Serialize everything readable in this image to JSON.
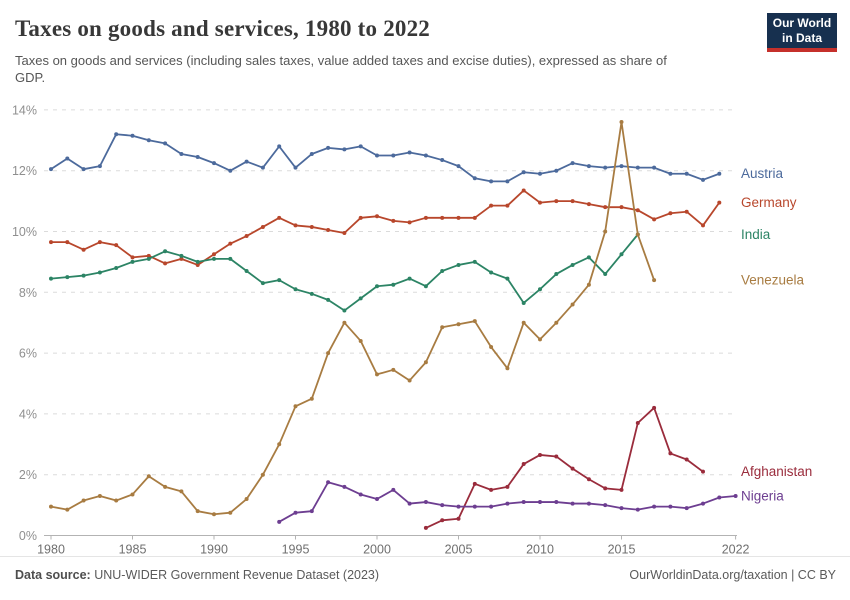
{
  "header": {
    "title": "Taxes on goods and services, 1980 to 2022",
    "subtitle_line1": "Taxes on goods and services (including sales taxes, value added taxes and excise duties), expressed as share of",
    "subtitle_line2": "GDP.",
    "logo_line1": "Our World",
    "logo_line2": "in Data",
    "logo_bg": "#17304F",
    "logo_strip": "#C5302B"
  },
  "footer": {
    "source_label": "Data source:",
    "source_text": "UNU-WIDER Government Revenue Dataset (2023)",
    "right_text": "OurWorldinData.org/taxation | CC BY"
  },
  "chart_data": {
    "type": "line",
    "title": "Taxes on goods and services, 1980 to 2022",
    "unit": "% of GDP",
    "xlim": [
      1980,
      2022
    ],
    "ylim": [
      0,
      14
    ],
    "grid": "horizontal-dashed",
    "legend_position": "right of line ends",
    "x_ticks": [
      1980,
      1985,
      1990,
      1995,
      2000,
      2005,
      2010,
      2015,
      2022
    ],
    "y_ticks": [
      0,
      2,
      4,
      6,
      8,
      10,
      12,
      14
    ],
    "y_tick_suffix": "%",
    "colors": {
      "grid": "#dbdbdb",
      "axis": "#b3b3b3",
      "y_tick_label": "#8f8f8f",
      "x_tick_label": "#6f6f6f"
    },
    "series": [
      {
        "name": "Austria",
        "color": "#4C6A9C",
        "start_year": 1980,
        "values": [
          12.05,
          12.4,
          12.05,
          12.15,
          13.2,
          13.15,
          13.0,
          12.9,
          12.55,
          12.45,
          12.25,
          12.0,
          12.3,
          12.1,
          12.8,
          12.1,
          12.55,
          12.75,
          12.7,
          12.8,
          12.5,
          12.5,
          12.6,
          12.5,
          12.35,
          12.15,
          11.75,
          11.65,
          11.65,
          11.95,
          11.9,
          12.0,
          12.25,
          12.15,
          12.1,
          12.15,
          12.1,
          12.1,
          11.9,
          11.9,
          11.7,
          11.9
        ]
      },
      {
        "name": "Germany",
        "color": "#B8472C",
        "start_year": 1980,
        "values": [
          9.65,
          9.65,
          9.4,
          9.65,
          9.55,
          9.15,
          9.2,
          8.95,
          9.1,
          8.9,
          9.25,
          9.6,
          9.85,
          10.15,
          10.45,
          10.2,
          10.15,
          10.05,
          9.95,
          10.45,
          10.5,
          10.35,
          10.3,
          10.45,
          10.45,
          10.45,
          10.45,
          10.85,
          10.85,
          11.35,
          10.95,
          11.0,
          11.0,
          10.9,
          10.8,
          10.8,
          10.7,
          10.4,
          10.6,
          10.65,
          10.2,
          10.95
        ]
      },
      {
        "name": "India",
        "color": "#2C8465",
        "start_year": 1980,
        "values": [
          8.45,
          8.5,
          8.55,
          8.65,
          8.8,
          9.0,
          9.1,
          9.35,
          9.2,
          9.0,
          9.1,
          9.1,
          8.7,
          8.3,
          8.4,
          8.1,
          7.95,
          7.75,
          7.4,
          7.8,
          8.2,
          8.25,
          8.45,
          8.2,
          8.7,
          8.9,
          9.0,
          8.65,
          8.45,
          7.65,
          8.1,
          8.6,
          8.9,
          9.15,
          8.6,
          9.25,
          9.9
        ]
      },
      {
        "name": "Venezuela",
        "color": "#A87C42",
        "start_year": 1980,
        "values": [
          0.95,
          0.85,
          1.15,
          1.3,
          1.15,
          1.35,
          1.95,
          1.6,
          1.45,
          0.8,
          0.7,
          0.75,
          1.2,
          2.0,
          3.0,
          4.25,
          4.5,
          6.0,
          7.0,
          6.4,
          5.3,
          5.45,
          5.1,
          5.7,
          6.85,
          6.95,
          7.05,
          6.2,
          5.5,
          7.0,
          6.45,
          7.0,
          7.6,
          8.25,
          10.0,
          13.6,
          9.9,
          8.4
        ]
      },
      {
        "name": "Afghanistan",
        "color": "#9A2C3C",
        "start_year": 2003,
        "values": [
          0.25,
          0.5,
          0.55,
          1.7,
          1.5,
          1.6,
          2.35,
          2.65,
          2.6,
          2.2,
          1.85,
          1.55,
          1.5,
          3.7,
          4.2,
          2.7,
          2.5,
          2.1
        ]
      },
      {
        "name": "Nigeria",
        "color": "#6D3E91",
        "start_year": 1994,
        "values": [
          0.45,
          0.75,
          0.8,
          1.75,
          1.6,
          1.35,
          1.2,
          1.5,
          1.05,
          1.1,
          1.0,
          0.95,
          0.95,
          0.95,
          1.05,
          1.1,
          1.1,
          1.1,
          1.05,
          1.05,
          1.0,
          0.9,
          0.85,
          0.95,
          0.95,
          0.9,
          1.05,
          1.25,
          1.3
        ]
      }
    ]
  }
}
